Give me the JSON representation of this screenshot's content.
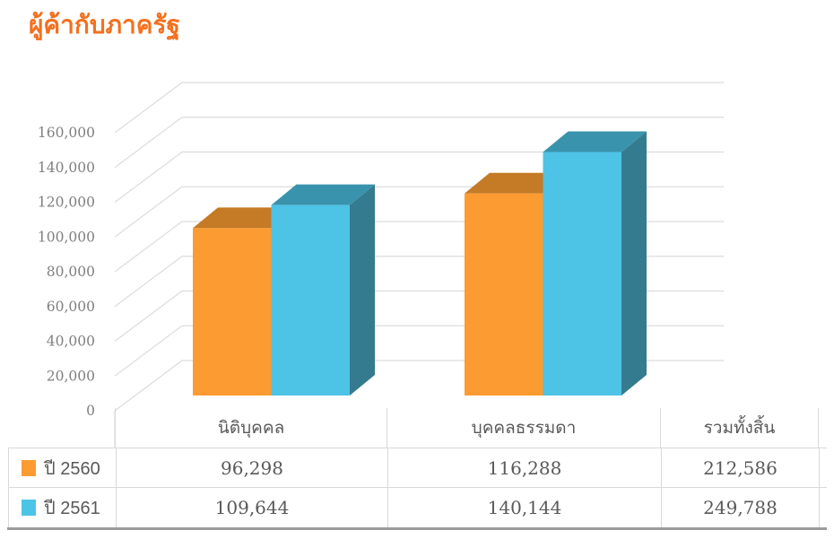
{
  "title": "ผู้ค้ากับภาครัฐ",
  "chart_data": {
    "type": "bar",
    "title": "ผู้ค้ากับภาครัฐ",
    "projection": "3d-oblique",
    "grid": true,
    "legend_position": "table-left",
    "categories": [
      "นิติบุคคล",
      "บุคคลธรรมดา"
    ],
    "total_column_label": "รวมทั้งสิ้น",
    "series": [
      {
        "name": "ปี 2560",
        "values": [
          96298,
          116288
        ],
        "total": 212586,
        "color": "#FB9B32"
      },
      {
        "name": "ปี 2561",
        "values": [
          109644,
          140144
        ],
        "total": 249788,
        "color": "#4DC3E6"
      }
    ],
    "ylim": [
      0,
      160000
    ],
    "ytick_step": 20000,
    "yticks": [
      {
        "value": 0,
        "label": "0"
      },
      {
        "value": 20000,
        "label": "20,000"
      },
      {
        "value": 40000,
        "label": "40,000"
      },
      {
        "value": 60000,
        "label": "60,000"
      },
      {
        "value": 80000,
        "label": "80,000"
      },
      {
        "value": 100000,
        "label": "100,000"
      },
      {
        "value": 120000,
        "label": "120,000"
      },
      {
        "value": 140000,
        "label": "140,000"
      },
      {
        "value": 160000,
        "label": "160,000"
      }
    ]
  },
  "table": {
    "columns": [
      "นิติบุคคล",
      "บุคคลธรรมดา",
      "รวมทั้งสิ้น"
    ],
    "rows": [
      {
        "legend": "ปี 2560",
        "swatch_color": "#FB9B32",
        "values": [
          "96,298",
          "116,288",
          "212,586"
        ]
      },
      {
        "legend": "ปี 2561",
        "swatch_color": "#4DC3E6",
        "values": [
          "109,644",
          "140,144",
          "249,788"
        ]
      }
    ]
  },
  "colors": {
    "title": "#F4701D",
    "grid": "#DCDCDC",
    "axis_label": "#7F7F7F",
    "table_border": "#D9D9D9",
    "table_border_bottom": "#9B9B9B",
    "text": "#595959",
    "series1_front": "#FB9B32",
    "series1_top": "#C57A26",
    "series1_side": "#B06E22",
    "series2_front": "#4DC3E6",
    "series2_top": "#3A93AD",
    "series2_side": "#357B8F"
  }
}
